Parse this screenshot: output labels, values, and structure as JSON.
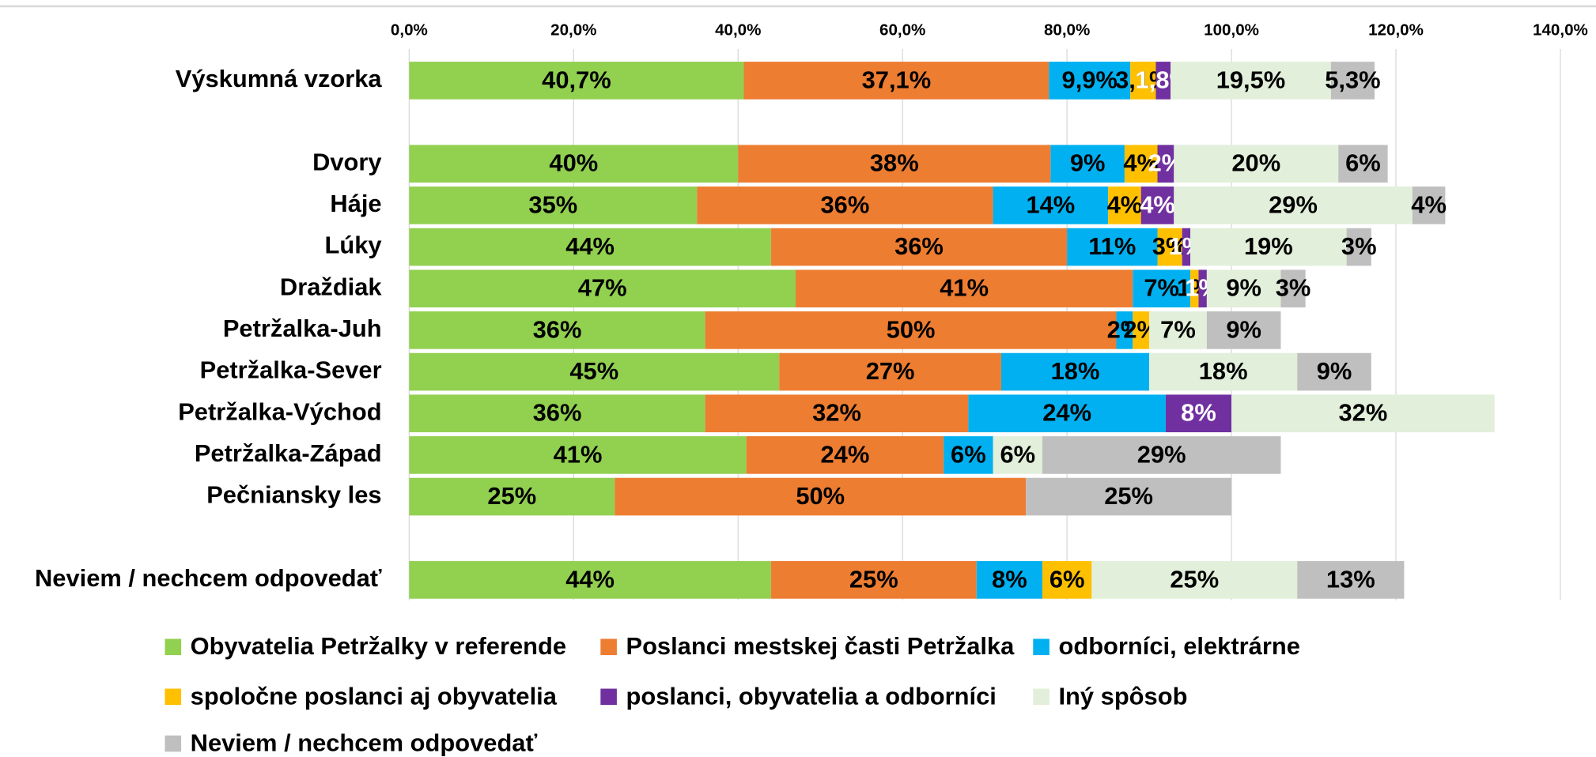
{
  "chart_data": {
    "type": "stacked-bar-horizontal",
    "categories": [
      "Výskumná vzorka",
      null,
      "Dvory",
      "Háje",
      "Lúky",
      "Draždiak",
      "Petržalka-Juh",
      "Petržalka-Sever",
      "Petržalka-Východ",
      "Petržalka-Západ",
      "Pečniansky les",
      null,
      "Neviem / nechcem odpovedať"
    ],
    "xlim": [
      0,
      140
    ],
    "xticks": [
      {
        "value": 0,
        "label": "0,0%"
      },
      {
        "value": 20,
        "label": "20,0%"
      },
      {
        "value": 40,
        "label": "40,0%"
      },
      {
        "value": 60,
        "label": "60,0%"
      },
      {
        "value": 80,
        "label": "80,0%"
      },
      {
        "value": 100,
        "label": "100,0%"
      },
      {
        "value": 120,
        "label": "120,0%"
      },
      {
        "value": 140,
        "label": "140,0%"
      }
    ],
    "grid": true,
    "legend": "bottom",
    "series": [
      {
        "name": "Obyvatelia Petržalky v referende",
        "color": "#92d050",
        "label_color": "#000000",
        "values": [
          40.7,
          null,
          40,
          35,
          44,
          47,
          36,
          45,
          36,
          41,
          25,
          null,
          44
        ],
        "value_labels": [
          "40,7%",
          null,
          "40%",
          "35%",
          "44%",
          "47%",
          "36%",
          "45%",
          "36%",
          "41%",
          "25%",
          null,
          "44%"
        ]
      },
      {
        "name": "Poslanci mestskej časti Petržalka",
        "color": "#ed7d31",
        "label_color": "#000000",
        "values": [
          37.1,
          null,
          38,
          36,
          36,
          41,
          50,
          27,
          32,
          24,
          50,
          null,
          25
        ],
        "value_labels": [
          "37,1%",
          null,
          "38%",
          "36%",
          "36%",
          "41%",
          "50%",
          "27%",
          "32%",
          "24%",
          "50%",
          null,
          "25%"
        ]
      },
      {
        "name": "odborníci, elektrárne",
        "color": "#00b0f0",
        "label_color": "#000000",
        "values": [
          9.9,
          null,
          9,
          14,
          11,
          7,
          2,
          18,
          24,
          6,
          null,
          null,
          8
        ],
        "value_labels": [
          "9,9%",
          null,
          "9%",
          "14%",
          "11%",
          "7%",
          "2%",
          "18%",
          "24%",
          "6%",
          null,
          null,
          "8%"
        ]
      },
      {
        "name": "spoločne poslanci aj obyvatelia",
        "color": "#ffc000",
        "label_color": "#000000",
        "values": [
          3.1,
          null,
          4,
          4,
          3,
          1,
          2,
          null,
          null,
          null,
          null,
          null,
          6
        ],
        "value_labels": [
          "3,1%",
          null,
          "4%",
          "4%",
          "3%",
          "1%",
          "2%",
          null,
          null,
          null,
          null,
          null,
          "6%"
        ]
      },
      {
        "name": "poslanci, obyvatelia a odborníci",
        "color": "#7030a0",
        "label_color": "#ffffff",
        "values": [
          1.8,
          null,
          2,
          4,
          1,
          1,
          null,
          null,
          8,
          null,
          null,
          null,
          null
        ],
        "value_labels": [
          "1,8%",
          null,
          "2%",
          "4%",
          "1%",
          "1%",
          null,
          null,
          "8%",
          null,
          null,
          null,
          null
        ]
      },
      {
        "name": "Iný spôsob",
        "color": "#e2efda",
        "label_color": "#000000",
        "values": [
          19.5,
          null,
          20,
          29,
          19,
          9,
          7,
          18,
          32,
          6,
          null,
          null,
          25
        ],
        "value_labels": [
          "19,5%",
          null,
          "20%",
          "29%",
          "19%",
          "9%",
          "7%",
          "18%",
          "32%",
          "6%",
          null,
          null,
          "25%"
        ]
      },
      {
        "name": "Neviem / nechcem odpovedať",
        "color": "#bfbfbf",
        "label_color": "#000000",
        "values": [
          5.3,
          null,
          6,
          4,
          3,
          3,
          9,
          9,
          null,
          29,
          25,
          null,
          13
        ],
        "value_labels": [
          "5,3%",
          null,
          "6%",
          "4%",
          "3%",
          "3%",
          "9%",
          "9%",
          null,
          "29%",
          "25%",
          null,
          "13%"
        ]
      }
    ]
  }
}
